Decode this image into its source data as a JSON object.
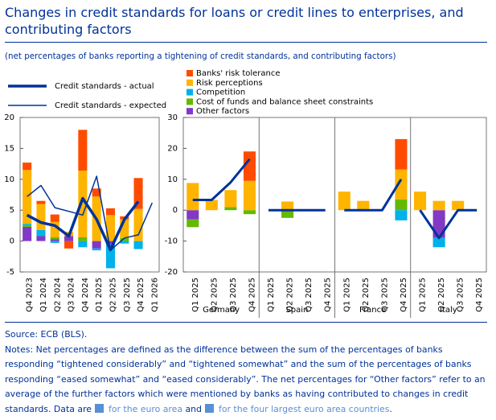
{
  "title": "Changes in credit standards for loans or credit lines to enterprises, and contributing factors",
  "subtitle": "(net percentages of banks reporting a tightening of credit standards, and contributing factors)",
  "source": "Source: ECB (BLS).",
  "notes": {
    "text": "Notes: Net percentages are defined as the difference between the sum of the percentages of banks responding “tightened considerably” and “tightened somewhat” and the sum of the percentages of banks responding “eased somewhat” and “eased considerably”. The net percentages for “Other factors” refer to an average of the further factors which were mentioned by banks as having contributed to changes in credit standards. Data are",
    "link1": "for the euro area",
    "and": "and",
    "link2": "for the four largest euro area countries",
    "end": "."
  },
  "chart_data": [
    {
      "type": "bar-line",
      "categories": [
        "Q4 2023",
        "Q1 2024",
        "Q2 2024",
        "Q3 2024",
        "Q4 2024",
        "Q1 2025",
        "Q2 2025",
        "Q3 2025",
        "Q4 2025",
        "Q1 2026"
      ],
      "ylim": [
        -5,
        20
      ],
      "yticks": [
        -5,
        0,
        5,
        10,
        15,
        20
      ],
      "series": [
        {
          "name": "Banks' risk tolerance",
          "color": "#ff4b00",
          "kind": "bar",
          "values": [
            1.2,
            0.5,
            1.2,
            -1.2,
            6.6,
            1.3,
            1.1,
            0.5,
            5.0,
            null
          ]
        },
        {
          "name": "Risk perceptions",
          "color": "#ffb400",
          "kind": "bar",
          "values": [
            8.7,
            4.2,
            2.5,
            0.7,
            10.8,
            7.2,
            4.2,
            3.0,
            5.2,
            null
          ]
        },
        {
          "name": "Competition",
          "color": "#00b1ea",
          "kind": "bar",
          "values": [
            0.2,
            1.0,
            -0.3,
            0,
            -1.0,
            -0.3,
            -3.9,
            -0.4,
            -1.3,
            null
          ]
        },
        {
          "name": "Cost of funds and balance sheet constraints",
          "color": "#65b800",
          "kind": "bar",
          "values": [
            0.3,
            0,
            0.3,
            0,
            0.6,
            0,
            0,
            0.5,
            0,
            null
          ]
        },
        {
          "name": "Other factors",
          "color": "#8139c6",
          "kind": "bar",
          "values": [
            2.3,
            0.8,
            0.3,
            0.8,
            0,
            -1.2,
            -0.5,
            0,
            0,
            null
          ]
        },
        {
          "name": "Credit standards - actual",
          "color": "#003299",
          "kind": "line",
          "width": 3.5,
          "values": [
            4.2,
            3.0,
            2.5,
            0.8,
            6.9,
            3.5,
            -1.4,
            3.5,
            6.4,
            null
          ]
        },
        {
          "name": "Credit standards - expected",
          "color": "#003299",
          "kind": "line",
          "width": 1.5,
          "values": [
            7.2,
            9.0,
            5.4,
            4.8,
            4.2,
            10.5,
            -1.5,
            0.5,
            1.0,
            6.2
          ]
        }
      ]
    },
    {
      "type": "bar-line",
      "groups": [
        "Germany",
        "Spain",
        "France",
        "Italy"
      ],
      "categories": [
        "Q1 2025",
        "Q2 2025",
        "Q3 2025",
        "Q4 2025",
        "Q1 2025",
        "Q2 2025",
        "Q3 2025",
        "Q4 2025",
        "Q1 2025",
        "Q2 2025",
        "Q3 2025",
        "Q4 2025",
        "Q1 2025",
        "Q2 2025",
        "Q3 2025",
        "Q4 2025"
      ],
      "ylim": [
        -20,
        30
      ],
      "yticks": [
        -20,
        -10,
        0,
        10,
        20,
        30
      ],
      "series": [
        {
          "name": "Banks' risk tolerance",
          "color": "#ff4b00",
          "kind": "bar",
          "values": [
            0,
            0,
            0,
            9.5,
            0,
            0,
            0,
            0,
            0,
            0,
            0,
            9.8,
            0,
            0,
            0,
            0
          ]
        },
        {
          "name": "Risk perceptions",
          "color": "#ffb400",
          "kind": "bar",
          "values": [
            8.8,
            3.3,
            5.5,
            9.5,
            0,
            2.8,
            0,
            0,
            6,
            3,
            0,
            9.7,
            6,
            3,
            3,
            0
          ]
        },
        {
          "name": "Competition",
          "color": "#00b1ea",
          "kind": "bar",
          "values": [
            0,
            0,
            0,
            0,
            0,
            0,
            0,
            0,
            0,
            0,
            0,
            -3.3,
            0,
            -3,
            0,
            0
          ]
        },
        {
          "name": "Cost of funds and balance sheet constraints",
          "color": "#65b800",
          "kind": "bar",
          "values": [
            -2.5,
            0,
            1,
            -1.3,
            0,
            -2.5,
            0,
            0,
            0,
            0,
            0,
            3.5,
            0,
            0,
            0,
            0
          ]
        },
        {
          "name": "Other factors",
          "color": "#8139c6",
          "kind": "bar",
          "values": [
            -3,
            0,
            0,
            0,
            0,
            0,
            0,
            0,
            0,
            0,
            0,
            0,
            0,
            -9,
            0,
            0
          ]
        },
        {
          "name": "Credit standards - actual",
          "color": "#003299",
          "kind": "line",
          "width": 3,
          "values": [
            3.3,
            3.3,
            9,
            16.5,
            0,
            0,
            0,
            0,
            0,
            0,
            0,
            10,
            0,
            -9,
            0,
            0
          ]
        }
      ]
    }
  ]
}
